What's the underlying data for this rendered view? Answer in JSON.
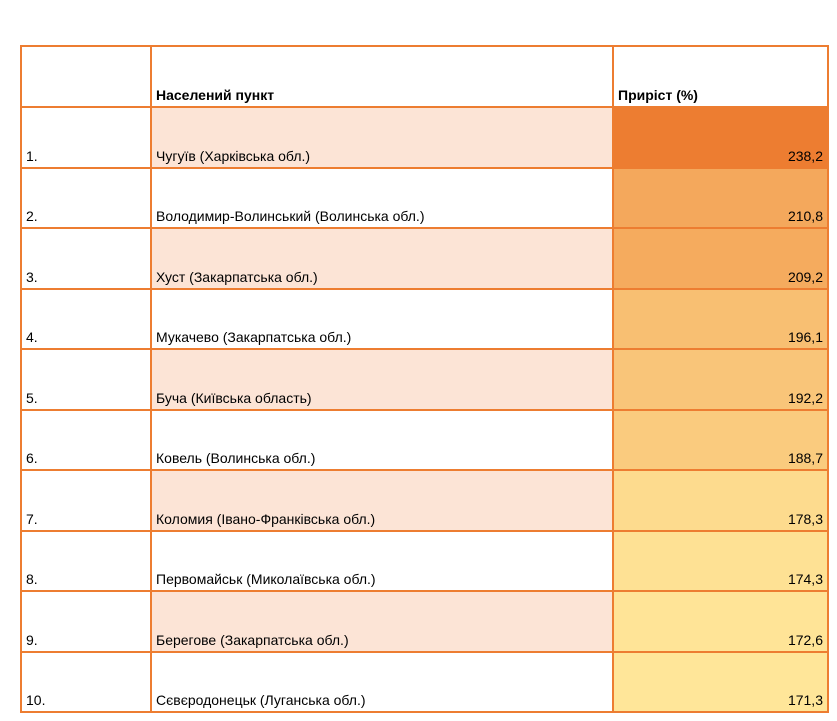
{
  "table": {
    "header": [
      "Населений пункт",
      "Приріст (%)"
    ],
    "color_scale": [
      "#ed7d31",
      "#ffe699"
    ],
    "stripe_color": "#fce4d6",
    "rows": [
      {
        "rank": "1.",
        "place": "Чугуїв (Харківська обл.)",
        "value": 238.2,
        "value_label": "238,2"
      },
      {
        "rank": "2.",
        "place": "Володимир-Волинський (Волинська обл.)",
        "value": 210.8,
        "value_label": "210,8"
      },
      {
        "rank": "3.",
        "place": "Хуст (Закарпатська обл.)",
        "value": 209.2,
        "value_label": "209,2"
      },
      {
        "rank": "4.",
        "place": "Мукачево (Закарпатська обл.)",
        "value": 196.1,
        "value_label": "196,1"
      },
      {
        "rank": "5.",
        "place": "Буча (Київська область)",
        "value": 192.2,
        "value_label": "192,2"
      },
      {
        "rank": "6.",
        "place": "Ковель (Волинська обл.)",
        "value": 188.7,
        "value_label": "188,7"
      },
      {
        "rank": "7.",
        "place": "Коломия (Івано-Франківська обл.)",
        "value": 178.3,
        "value_label": "178,3"
      },
      {
        "rank": "8.",
        "place": "Первомайськ (Миколаївська обл.)",
        "value": 174.3,
        "value_label": "174,3"
      },
      {
        "rank": "9.",
        "place": "Берегове (Закарпатська обл.)",
        "value": 172.6,
        "value_label": "172,6"
      },
      {
        "rank": "10.",
        "place": "Сєвєродонецьк (Луганська обл.)",
        "value": 171.3,
        "value_label": "171,3"
      }
    ]
  }
}
